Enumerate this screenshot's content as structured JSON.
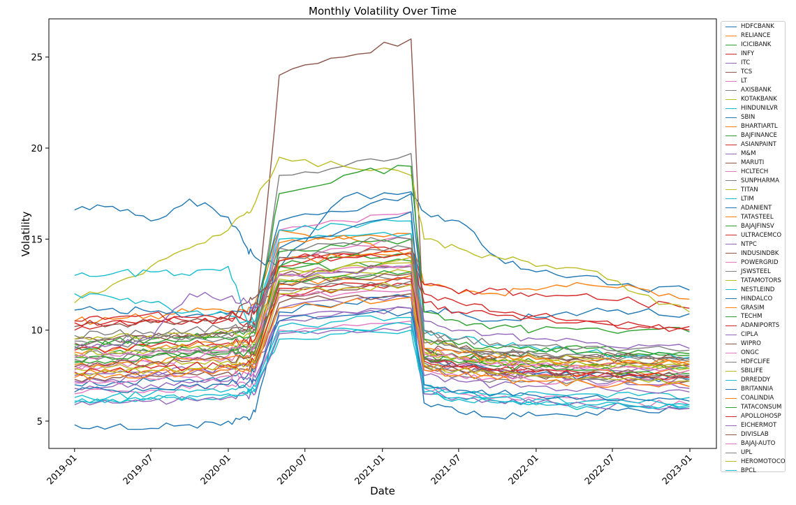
{
  "chart_data": {
    "type": "line",
    "title": "Monthly Volatility Over Time",
    "xlabel": "Date",
    "ylabel": "Volatility",
    "x_range": [
      "2018-11-01",
      "2023-03-05"
    ],
    "x_ticks": [
      "2019-01",
      "2019-07",
      "2020-01",
      "2020-07",
      "2021-01",
      "2021-07",
      "2022-01",
      "2022-07",
      "2023-01"
    ],
    "ylim": [
      3.5,
      27.1
    ],
    "y_ticks": [
      5,
      10,
      15,
      20,
      25
    ],
    "grid": false,
    "legend_position": "outside-right",
    "series": [
      {
        "name": "HDFCBANK",
        "color": "#1f77b4",
        "values": [
          16.6,
          16.8,
          16.0,
          17.2,
          16.2,
          14.5,
          14.0,
          13.4,
          17.3,
          17.6,
          16.5,
          16.0,
          14.0,
          13.2,
          13.0,
          12.3,
          12.2
        ]
      },
      {
        "name": "RELIANCE",
        "color": "#ff7f0e",
        "values": [
          10.5,
          10.6,
          10.8,
          11.0,
          11.0,
          11.0,
          11.5,
          15.5,
          15.0,
          15.3,
          12.5,
          12.0,
          12.0,
          12.2,
          12.5,
          12.3,
          11.7
        ]
      },
      {
        "name": "ICICIBANK",
        "color": "#2ca02c",
        "values": [
          8.5,
          8.8,
          8.8,
          9.0,
          9.0,
          8.8,
          9.0,
          13.5,
          13.5,
          13.8,
          8.5,
          8.5,
          8.5,
          8.8,
          9.0,
          8.9,
          8.7
        ]
      },
      {
        "name": "INFY",
        "color": "#d62728",
        "values": [
          10.0,
          10.3,
          10.5,
          10.5,
          10.6,
          10.5,
          11.0,
          13.5,
          14.2,
          14.5,
          12.5,
          12.0,
          12.2,
          12.0,
          12.0,
          11.5,
          11.2
        ]
      },
      {
        "name": "ITC",
        "color": "#9467bd",
        "values": [
          7.5,
          7.6,
          7.7,
          7.8,
          7.9,
          8.0,
          8.2,
          11.2,
          11.5,
          11.8,
          8.5,
          8.0,
          7.8,
          7.5,
          7.3,
          7.0,
          6.8
        ]
      },
      {
        "name": "TCS",
        "color": "#8c564b",
        "values": [
          9.5,
          9.5,
          9.6,
          9.7,
          9.8,
          10.0,
          10.0,
          24.0,
          25.0,
          26.0,
          9.5,
          9.0,
          8.8,
          8.5,
          8.6,
          8.5,
          8.4
        ]
      },
      {
        "name": "LT",
        "color": "#e377c2",
        "values": [
          8.0,
          8.2,
          8.3,
          8.5,
          8.6,
          8.8,
          9.0,
          14.0,
          14.5,
          15.0,
          8.5,
          8.0,
          7.8,
          7.6,
          7.5,
          7.4,
          7.2
        ]
      },
      {
        "name": "AXISBANK",
        "color": "#7f7f7f",
        "values": [
          9.0,
          9.2,
          9.3,
          9.5,
          9.6,
          9.5,
          9.8,
          18.5,
          19.0,
          19.7,
          10.0,
          9.0,
          8.8,
          8.6,
          8.5,
          8.4,
          8.3
        ]
      },
      {
        "name": "KOTAKBANK",
        "color": "#bcbd22",
        "values": [
          11.5,
          12.5,
          13.5,
          14.5,
          15.5,
          16.5,
          17.0,
          19.5,
          19.0,
          18.5,
          15.0,
          14.5,
          14.0,
          13.5,
          13.3,
          12.0,
          11.0
        ]
      },
      {
        "name": "HINDUNILVR",
        "color": "#17becf",
        "values": [
          13.0,
          13.1,
          13.2,
          13.0,
          13.5,
          10.5,
          10.5,
          15.0,
          15.2,
          15.3,
          7.0,
          6.5,
          6.5,
          6.6,
          6.5,
          6.4,
          6.3
        ]
      },
      {
        "name": "SBIN",
        "color": "#1f77b4",
        "values": [
          11.1,
          11.2,
          11.0,
          10.8,
          10.9,
          11.0,
          11.2,
          16.0,
          16.5,
          17.5,
          11.0,
          11.0,
          10.5,
          10.7,
          11.0,
          11.0,
          10.9
        ]
      },
      {
        "name": "BHARTIARTL",
        "color": "#ff7f0e",
        "values": [
          8.8,
          8.9,
          9.0,
          9.1,
          9.2,
          9.3,
          9.5,
          14.8,
          15.2,
          14.0,
          9.0,
          8.5,
          8.3,
          8.1,
          8.0,
          8.2,
          8.3
        ]
      },
      {
        "name": "BAJFINANCE",
        "color": "#2ca02c",
        "values": [
          9.2,
          9.4,
          9.5,
          9.6,
          9.8,
          10.0,
          10.2,
          17.5,
          18.5,
          19.0,
          11.0,
          10.5,
          10.2,
          10.0,
          10.1,
          10.0,
          9.9
        ]
      },
      {
        "name": "ASIANPAINT",
        "color": "#d62728",
        "values": [
          10.5,
          10.7,
          10.9,
          10.5,
          10.6,
          10.4,
          10.2,
          14.0,
          14.2,
          14.5,
          12.0,
          11.5,
          11.0,
          10.8,
          10.5,
          10.2,
          10.0
        ]
      },
      {
        "name": "M&M",
        "color": "#9467bd",
        "values": [
          7.2,
          7.3,
          7.5,
          7.6,
          7.8,
          8.0,
          8.1,
          10.5,
          11.0,
          11.2,
          8.0,
          7.8,
          7.5,
          7.6,
          7.8,
          7.9,
          8.0
        ]
      },
      {
        "name": "MARUTI",
        "color": "#8c564b",
        "values": [
          9.3,
          9.5,
          9.6,
          9.8,
          9.9,
          10.0,
          11.5,
          12.0,
          12.2,
          12.5,
          9.0,
          8.5,
          8.3,
          8.2,
          8.5,
          8.6,
          8.5
        ]
      },
      {
        "name": "HCLTECH",
        "color": "#e377c2",
        "values": [
          7.8,
          8.0,
          8.2,
          8.4,
          8.5,
          8.6,
          8.8,
          15.5,
          16.0,
          16.5,
          9.0,
          8.5,
          8.2,
          8.0,
          7.9,
          8.0,
          8.1
        ]
      },
      {
        "name": "SUNPHARMA",
        "color": "#7f7f7f",
        "values": [
          8.6,
          8.7,
          8.8,
          8.9,
          9.0,
          9.1,
          9.2,
          12.5,
          12.8,
          13.0,
          8.0,
          7.5,
          7.3,
          7.2,
          7.3,
          7.4,
          7.5
        ]
      },
      {
        "name": "TITAN",
        "color": "#bcbd22",
        "values": [
          9.5,
          9.6,
          9.7,
          9.8,
          9.9,
          9.8,
          10.0,
          13.0,
          13.5,
          14.0,
          9.5,
          9.0,
          8.7,
          8.5,
          8.4,
          8.3,
          8.2
        ]
      },
      {
        "name": "LTIM",
        "color": "#17becf",
        "values": [
          12.0,
          11.8,
          11.5,
          11.0,
          10.8,
          10.5,
          10.2,
          15.5,
          15.8,
          16.0,
          10.0,
          9.5,
          9.2,
          9.0,
          8.8,
          8.6,
          8.5
        ]
      },
      {
        "name": "ADANIENT",
        "color": "#1f77b4",
        "values": [
          7.0,
          7.1,
          7.2,
          7.3,
          7.4,
          7.5,
          7.8,
          14.5,
          15.5,
          16.5,
          8.5,
          8.0,
          7.8,
          7.6,
          7.5,
          7.4,
          7.3
        ]
      },
      {
        "name": "TATASTEEL",
        "color": "#ff7f0e",
        "values": [
          7.6,
          7.7,
          7.8,
          7.9,
          8.0,
          8.1,
          8.3,
          12.5,
          12.8,
          13.0,
          8.0,
          7.8,
          7.6,
          7.5,
          7.6,
          7.7,
          7.8
        ]
      },
      {
        "name": "BAJAJFINSV",
        "color": "#2ca02c",
        "values": [
          8.2,
          8.3,
          8.5,
          8.6,
          8.8,
          9.0,
          9.2,
          13.5,
          14.0,
          14.2,
          9.0,
          8.5,
          8.3,
          8.2,
          8.1,
          8.0,
          7.9
        ]
      },
      {
        "name": "ULTRACEMCO",
        "color": "#d62728",
        "values": [
          8.9,
          9.0,
          9.1,
          9.2,
          9.3,
          9.4,
          9.5,
          12.0,
          12.3,
          12.5,
          8.5,
          8.0,
          7.8,
          7.7,
          7.6,
          7.5,
          7.4
        ]
      },
      {
        "name": "NTPC",
        "color": "#9467bd",
        "values": [
          6.8,
          6.9,
          7.0,
          7.1,
          7.2,
          7.3,
          7.4,
          10.8,
          11.0,
          11.2,
          7.5,
          7.2,
          7.0,
          6.9,
          6.8,
          6.7,
          6.6
        ]
      },
      {
        "name": "INDUSINDBK",
        "color": "#8c564b",
        "values": [
          10.2,
          10.3,
          10.4,
          10.5,
          10.6,
          11.5,
          11.8,
          13.0,
          13.2,
          13.5,
          9.0,
          8.8,
          8.5,
          8.4,
          8.3,
          8.2,
          8.1
        ]
      },
      {
        "name": "POWERGRID",
        "color": "#e377c2",
        "values": [
          6.5,
          6.6,
          6.7,
          6.8,
          6.9,
          7.0,
          7.1,
          10.0,
          10.3,
          10.5,
          6.8,
          6.5,
          6.3,
          6.2,
          6.1,
          6.0,
          5.9
        ]
      },
      {
        "name": "JSWSTEEL",
        "color": "#7f7f7f",
        "values": [
          8.4,
          8.5,
          8.6,
          8.7,
          8.8,
          8.9,
          9.0,
          12.2,
          12.5,
          12.7,
          8.2,
          7.8,
          7.6,
          7.5,
          7.4,
          7.3,
          7.2
        ]
      },
      {
        "name": "TATAMOTORS",
        "color": "#bcbd22",
        "values": [
          7.9,
          8.0,
          8.1,
          8.2,
          8.3,
          8.4,
          8.5,
          12.8,
          13.0,
          13.2,
          8.8,
          8.5,
          8.3,
          8.2,
          8.1,
          8.0,
          7.9
        ]
      },
      {
        "name": "NESTLEIND",
        "color": "#17becf",
        "values": [
          6.0,
          6.1,
          6.2,
          6.3,
          6.4,
          6.5,
          6.6,
          9.5,
          9.8,
          10.0,
          6.5,
          6.2,
          6.0,
          5.9,
          5.8,
          5.8,
          5.9
        ]
      },
      {
        "name": "HINDALCO",
        "color": "#1f77b4",
        "values": [
          4.8,
          4.7,
          4.6,
          4.8,
          5.0,
          5.2,
          5.5,
          11.0,
          11.5,
          11.8,
          6.0,
          5.5,
          5.2,
          5.3,
          5.5,
          5.6,
          5.7
        ]
      },
      {
        "name": "GRASIM",
        "color": "#ff7f0e",
        "values": [
          8.1,
          8.2,
          8.3,
          8.4,
          8.5,
          8.6,
          8.8,
          13.8,
          14.0,
          14.3,
          9.0,
          8.7,
          8.5,
          8.4,
          8.3,
          8.2,
          8.1
        ]
      },
      {
        "name": "TECHM",
        "color": "#2ca02c",
        "values": [
          9.1,
          9.2,
          9.3,
          9.4,
          9.5,
          9.6,
          9.8,
          14.3,
          14.6,
          15.0,
          9.5,
          9.2,
          9.0,
          8.9,
          8.8,
          8.7,
          8.6
        ]
      },
      {
        "name": "ADANIPORTS",
        "color": "#d62728",
        "values": [
          10.4,
          10.5,
          10.6,
          10.7,
          10.8,
          10.9,
          11.0,
          13.8,
          14.0,
          14.2,
          11.5,
          11.0,
          10.8,
          10.6,
          10.5,
          10.3,
          10.2
        ]
      },
      {
        "name": "CIPLA",
        "color": "#9467bd",
        "values": [
          9.0,
          9.2,
          9.5,
          12.0,
          11.8,
          11.5,
          11.2,
          13.0,
          13.2,
          13.5,
          10.5,
          10.0,
          9.8,
          9.5,
          9.3,
          9.2,
          9.0
        ]
      },
      {
        "name": "WIPRO",
        "color": "#8c564b",
        "values": [
          7.3,
          7.4,
          7.5,
          7.6,
          7.7,
          7.8,
          7.9,
          11.5,
          11.8,
          12.0,
          8.0,
          7.8,
          7.6,
          7.5,
          7.4,
          7.3,
          7.2
        ]
      },
      {
        "name": "ONGC",
        "color": "#e377c2",
        "values": [
          7.1,
          7.2,
          7.3,
          7.4,
          7.5,
          7.6,
          7.7,
          11.8,
          12.0,
          12.2,
          7.8,
          7.5,
          7.3,
          7.2,
          7.1,
          7.0,
          6.9
        ]
      },
      {
        "name": "HDFCLIFE",
        "color": "#7f7f7f",
        "values": [
          9.7,
          9.8,
          9.9,
          10.0,
          10.1,
          10.2,
          10.3,
          14.5,
          14.8,
          15.0,
          9.8,
          9.5,
          9.3,
          9.2,
          9.1,
          9.0,
          8.9
        ]
      },
      {
        "name": "SBILIFE",
        "color": "#bcbd22",
        "values": [
          8.7,
          8.8,
          8.9,
          9.0,
          9.1,
          9.2,
          9.3,
          13.2,
          13.5,
          13.7,
          8.8,
          8.5,
          8.3,
          8.2,
          8.1,
          8.0,
          7.9
        ]
      },
      {
        "name": "DRREDDY",
        "color": "#17becf",
        "values": [
          6.3,
          6.4,
          6.5,
          6.6,
          6.7,
          6.8,
          6.9,
          10.2,
          10.5,
          10.7,
          6.8,
          6.5,
          6.3,
          6.2,
          6.1,
          6.0,
          5.9
        ]
      },
      {
        "name": "BRITANNIA",
        "color": "#1f77b4",
        "values": [
          6.6,
          6.7,
          6.8,
          6.9,
          7.0,
          7.1,
          7.2,
          10.5,
          10.8,
          11.0,
          7.0,
          6.7,
          6.5,
          6.4,
          6.3,
          6.2,
          6.1
        ]
      },
      {
        "name": "COALINDIA",
        "color": "#ff7f0e",
        "values": [
          7.4,
          7.5,
          7.6,
          7.7,
          7.8,
          7.9,
          8.0,
          11.2,
          11.5,
          11.8,
          7.8,
          7.5,
          7.3,
          7.2,
          7.1,
          7.0,
          6.9
        ]
      },
      {
        "name": "TATACONSUM",
        "color": "#2ca02c",
        "values": [
          8.3,
          8.4,
          8.5,
          8.6,
          8.7,
          8.8,
          8.9,
          12.7,
          13.0,
          13.2,
          8.5,
          8.2,
          8.0,
          7.9,
          7.8,
          7.7,
          7.6
        ]
      },
      {
        "name": "APOLLOHOSP",
        "color": "#d62728",
        "values": [
          7.7,
          7.8,
          7.9,
          8.0,
          8.1,
          8.2,
          8.3,
          12.3,
          12.6,
          12.8,
          8.3,
          8.0,
          7.8,
          7.7,
          7.6,
          7.5,
          7.4
        ]
      },
      {
        "name": "EICHERMOT",
        "color": "#9467bd",
        "values": [
          5.9,
          6.0,
          6.1,
          6.2,
          6.3,
          6.4,
          6.5,
          9.8,
          10.0,
          10.2,
          6.5,
          6.3,
          6.1,
          6.0,
          5.9,
          5.8,
          5.7
        ]
      },
      {
        "name": "DIVISLAB",
        "color": "#8c564b",
        "values": [
          8.0,
          8.1,
          8.2,
          8.3,
          8.4,
          8.5,
          8.6,
          12.6,
          12.9,
          13.1,
          8.4,
          8.1,
          7.9,
          7.8,
          7.7,
          7.6,
          7.5
        ]
      },
      {
        "name": "BAJAJ-AUTO",
        "color": "#e377c2",
        "values": [
          8.5,
          8.6,
          8.7,
          8.8,
          8.9,
          9.0,
          9.1,
          13.1,
          13.4,
          13.6,
          8.7,
          8.4,
          8.2,
          8.1,
          8.0,
          7.9,
          7.8
        ]
      },
      {
        "name": "UPL",
        "color": "#7f7f7f",
        "values": [
          9.4,
          9.5,
          9.6,
          9.7,
          9.8,
          9.9,
          10.0,
          14.0,
          14.3,
          14.5,
          9.3,
          9.0,
          8.8,
          8.7,
          8.6,
          8.5,
          8.4
        ]
      },
      {
        "name": "HEROMOTOCO",
        "color": "#bcbd22",
        "values": [
          7.6,
          7.7,
          7.8,
          7.9,
          8.0,
          8.1,
          8.2,
          12.0,
          12.3,
          12.5,
          8.1,
          7.8,
          7.6,
          7.5,
          7.4,
          7.3,
          7.2
        ]
      },
      {
        "name": "BPCL",
        "color": "#17becf",
        "values": [
          6.1,
          6.2,
          6.3,
          6.4,
          6.5,
          6.6,
          6.7,
          9.9,
          10.1,
          10.3,
          6.6,
          6.3,
          6.1,
          6.0,
          5.9,
          5.8,
          5.8
        ]
      }
    ],
    "x": [
      "2019-01-01",
      "2019-04-01",
      "2019-07-01",
      "2019-10-01",
      "2020-01-01",
      "2020-02-15",
      "2020-03-05",
      "2020-05-01",
      "2020-10-01",
      "2021-03-10",
      "2021-04-10",
      "2021-07-01",
      "2021-10-01",
      "2022-01-01",
      "2022-05-01",
      "2022-09-01",
      "2022-12-31"
    ]
  }
}
